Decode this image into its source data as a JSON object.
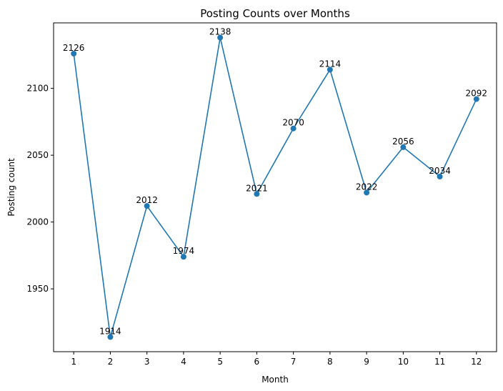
{
  "chart_data": {
    "type": "line",
    "title": "Posting Counts over Months",
    "xlabel": "Month",
    "ylabel": "Posting count",
    "x": [
      1,
      2,
      3,
      4,
      5,
      6,
      7,
      8,
      9,
      10,
      11,
      12
    ],
    "xticks": [
      "1",
      "2",
      "3",
      "4",
      "5",
      "6",
      "7",
      "8",
      "9",
      "10",
      "11",
      "12"
    ],
    "series": [
      {
        "values": [
          2126,
          1914,
          2012,
          1974,
          2138,
          2021,
          2070,
          2114,
          2022,
          2056,
          2034,
          2092
        ]
      }
    ],
    "yticks": [
      1950,
      2000,
      2050,
      2100
    ],
    "xlim": [
      0.45,
      12.55
    ],
    "ylim": [
      1903,
      2149
    ],
    "grid": false,
    "color": "#1f77b4",
    "marker": "circle"
  }
}
